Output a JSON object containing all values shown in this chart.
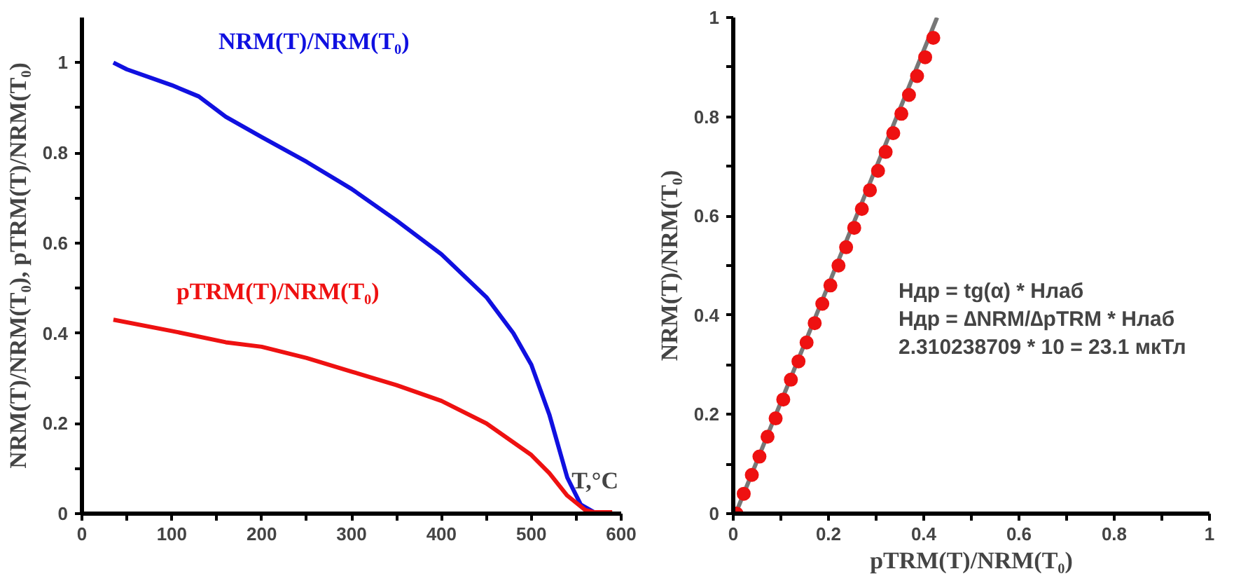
{
  "chart_data": [
    {
      "type": "line",
      "xlabel": "T,°C",
      "ylabel": "NRM(T)/NRM(T₀), pTRM(T)/NRM(T₀)",
      "xlim": [
        0,
        600
      ],
      "ylim": [
        0,
        1.1
      ],
      "xticks": [
        0,
        {
          "value": 50,
          "label": null
        },
        100,
        {
          "value": 150,
          "label": null
        },
        200,
        {
          "value": 250,
          "label": null
        },
        300,
        {
          "value": 350,
          "label": null
        },
        400,
        {
          "value": 450,
          "label": null
        },
        500,
        {
          "value": 550,
          "label": null
        },
        600
      ],
      "yticks": [
        0,
        {
          "value": 0.1,
          "label": null
        },
        0.2,
        {
          "value": 0.3,
          "label": null
        },
        0.4,
        {
          "value": 0.5,
          "label": null
        },
        0.6,
        {
          "value": 0.7,
          "label": null
        },
        0.8,
        {
          "value": 0.9,
          "label": null
        },
        1
      ],
      "grid": false,
      "legend": false,
      "marker": "none",
      "line_style": "solid",
      "series": [
        {
          "name": "NRM(T)/NRM(T₀)",
          "color": "#1010e0",
          "x": [
            35,
            50,
            100,
            130,
            160,
            200,
            250,
            300,
            350,
            400,
            450,
            480,
            500,
            520,
            540,
            555,
            570
          ],
          "values": [
            1.0,
            0.985,
            0.95,
            0.925,
            0.88,
            0.835,
            0.78,
            0.72,
            0.65,
            0.575,
            0.48,
            0.4,
            0.33,
            0.22,
            0.08,
            0.02,
            0.003
          ]
        },
        {
          "name": "pTRM(T)/NRM(T₀)",
          "color": "#ee1111",
          "x": [
            35,
            100,
            160,
            200,
            250,
            300,
            350,
            400,
            450,
            500,
            520,
            540,
            560,
            570,
            590
          ],
          "values": [
            0.43,
            0.405,
            0.38,
            0.37,
            0.345,
            0.315,
            0.285,
            0.25,
            0.2,
            0.13,
            0.09,
            0.04,
            0.008,
            0.003,
            0.003
          ]
        }
      ]
    },
    {
      "type": "scatter",
      "xlabel": "pTRM(T)/NRM(T₀)",
      "ylabel": "NRM(T)/NRM(T₀)",
      "xlim": [
        0,
        1
      ],
      "ylim": [
        0,
        1
      ],
      "xticks": [
        0,
        {
          "value": 0.1,
          "label": null
        },
        0.2,
        {
          "value": 0.3,
          "label": null
        },
        0.4,
        {
          "value": 0.5,
          "label": null
        },
        0.6,
        {
          "value": 0.7,
          "label": null
        },
        0.8,
        {
          "value": 0.9,
          "label": null
        },
        1
      ],
      "yticks": [
        0,
        {
          "value": 0.1,
          "label": null
        },
        0.2,
        {
          "value": 0.3,
          "label": null
        },
        0.4,
        {
          "value": 0.5,
          "label": null
        },
        0.6,
        {
          "value": 0.7,
          "label": null
        },
        0.8,
        {
          "value": 0.9,
          "label": null
        },
        1
      ],
      "grid": false,
      "legend": false,
      "annotations": [
        "Hдр = tg(α) * Hлаб",
        "Hдр = ∆NRM/∆pTRM * Hлаб",
        "2.310238709 * 10 = 23.1 мкТл"
      ],
      "series": [
        {
          "type": "line",
          "color": "#777777",
          "x": [
            0.005,
            0.428
          ],
          "values": [
            0,
            1.0
          ]
        },
        {
          "type": "scatter",
          "color": "#ee1111",
          "marker": "circle",
          "x": [
            0.007,
            0.022,
            0.039,
            0.055,
            0.072,
            0.089,
            0.105,
            0.121,
            0.137,
            0.154,
            0.171,
            0.187,
            0.204,
            0.221,
            0.237,
            0.254,
            0.27,
            0.287,
            0.304,
            0.32,
            0.336,
            0.353,
            0.369,
            0.386,
            0.403,
            0.42
          ],
          "values": [
            0,
            0.04,
            0.078,
            0.115,
            0.155,
            0.192,
            0.23,
            0.27,
            0.307,
            0.345,
            0.384,
            0.423,
            0.46,
            0.5,
            0.537,
            0.576,
            0.614,
            0.652,
            0.691,
            0.729,
            0.767,
            0.806,
            0.844,
            0.882,
            0.92,
            0.959
          ]
        }
      ]
    }
  ]
}
